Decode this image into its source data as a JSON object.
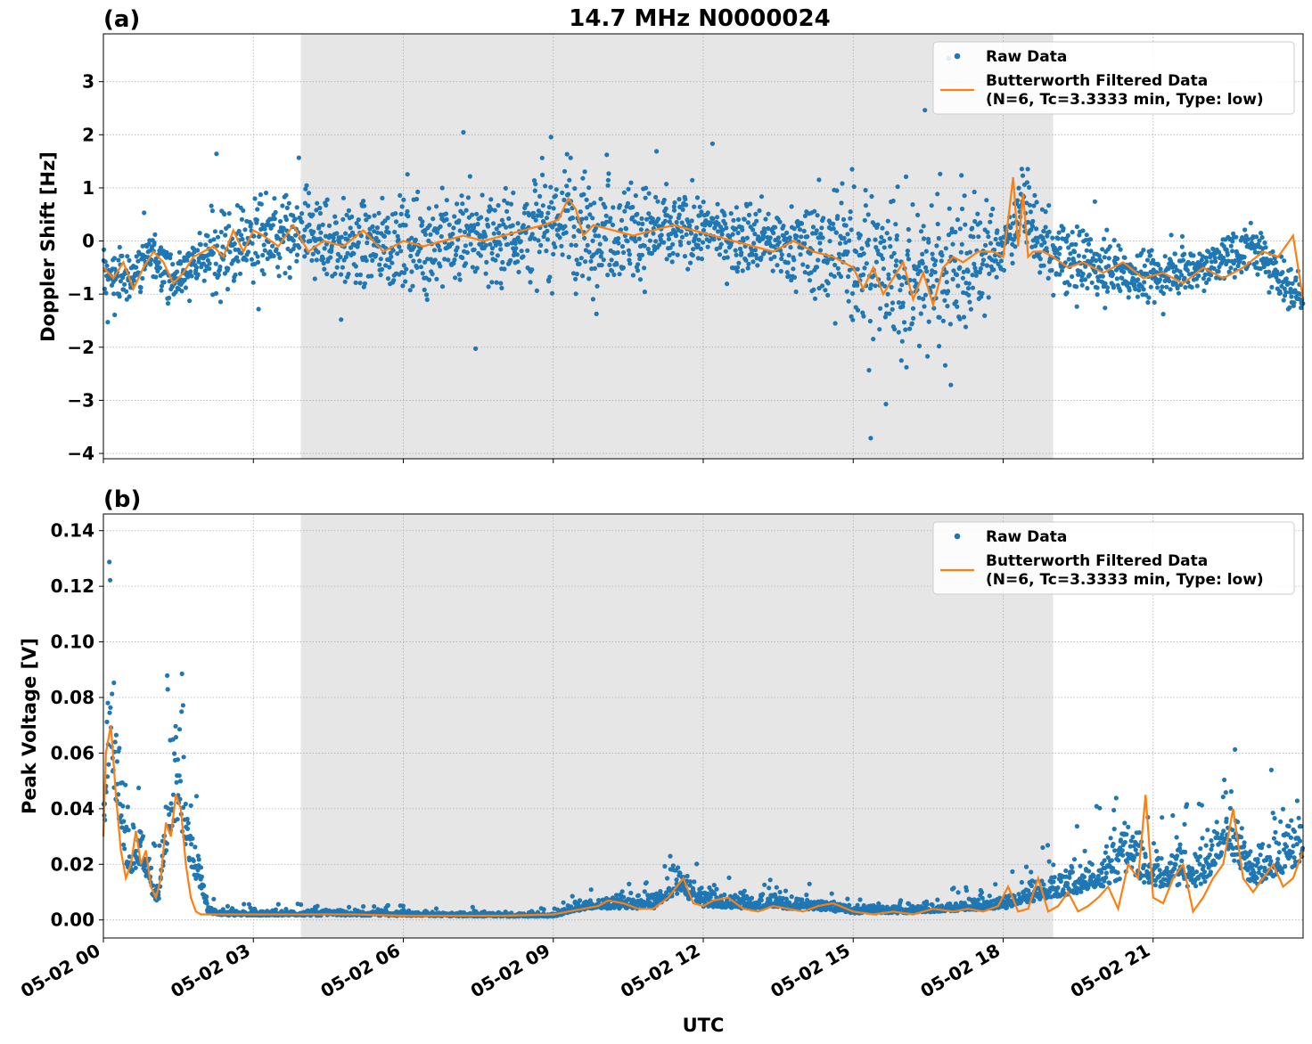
{
  "figure_title": "14.7 MHz N0000024",
  "xlabel": "UTC",
  "colors": {
    "raw": "#1f77b4",
    "filtered": "#ff7f0e",
    "shade": "#e6e6e6",
    "grid": "#b0b0b0"
  },
  "legend": {
    "raw_label": "Raw Data",
    "filt_label_1": "Butterworth Filtered Data",
    "filt_label_2": "(N=6, Tc=3.3333 min, Type: low)"
  },
  "chart_data": [
    {
      "panel": "(a)",
      "type": "scatter",
      "ylabel": "Doppler Shift [Hz]",
      "xlim_hours": [
        0,
        24
      ],
      "ylim": [
        -4.1,
        3.9
      ],
      "yticks": [
        3,
        2,
        1,
        0,
        -1,
        -2,
        -3,
        -4
      ],
      "ytick_labels": [
        "3",
        "2",
        "1",
        "0",
        "−1",
        "−2",
        "−3",
        "−4"
      ],
      "xtick_labels": [
        "05-02 00",
        "05-02 03",
        "05-02 06",
        "05-02 09",
        "05-02 12",
        "05-02 15",
        "05-02 18",
        "05-02 21"
      ],
      "grid": true,
      "legend_position": "top-right",
      "shaded_region_hours": [
        3.95,
        19.0
      ],
      "series": [
        {
          "name": "Raw Data",
          "kind": "scatter",
          "center_hours": [
            0,
            0.5,
            1,
            1.4,
            1.8,
            2.2,
            2.6,
            3,
            3.5,
            4,
            4.5,
            5,
            5.5,
            6,
            6.5,
            7,
            7.5,
            8,
            8.5,
            9,
            9.3,
            9.5,
            10,
            11,
            12,
            13,
            14,
            15,
            15.5,
            16,
            16.5,
            17,
            17.5,
            18,
            18.2,
            18.4,
            18.6,
            19,
            19.5,
            20,
            20.5,
            21,
            21.5,
            22,
            22.5,
            23,
            23.5,
            24
          ],
          "center": [
            -0.6,
            -0.7,
            -0.2,
            -0.8,
            -0.4,
            -0.2,
            -0.1,
            0.1,
            0,
            0.1,
            0,
            -0.1,
            0,
            -0.1,
            0,
            0,
            0.1,
            0.1,
            0.2,
            0.3,
            0.6,
            0.1,
            0.2,
            0.2,
            0.2,
            0,
            -0.1,
            -0.2,
            -0.5,
            -0.7,
            -0.6,
            -0.4,
            -0.3,
            -0.2,
            0.3,
            0.8,
            0.2,
            -0.3,
            -0.4,
            -0.5,
            -0.6,
            -0.7,
            -0.5,
            -0.5,
            -0.3,
            -0.1,
            -0.6,
            -1.1
          ],
          "spread_hours": [
            0,
            1.9,
            2.2,
            4,
            7,
            9,
            9.5,
            12,
            14,
            15,
            17,
            18,
            19,
            21,
            24
          ],
          "spread": [
            0.4,
            0.4,
            0.7,
            0.7,
            0.8,
            0.9,
            1.0,
            0.5,
            0.6,
            1.4,
            1.5,
            0.5,
            0.6,
            0.4,
            0.4
          ]
        }
      ],
      "filtered_line": {
        "name": "Butterworth Filtered Data (N=6, Tc=3.3333 min, Type: low)",
        "x_hours": [
          0,
          0.2,
          0.4,
          0.6,
          0.8,
          1,
          1.2,
          1.4,
          1.6,
          1.8,
          2,
          2.2,
          2.4,
          2.6,
          2.8,
          3,
          3.2,
          3.5,
          3.8,
          4.1,
          4.4,
          4.8,
          5.2,
          5.6,
          6,
          6.4,
          6.8,
          7.2,
          7.6,
          8,
          8.4,
          8.8,
          9.1,
          9.3,
          9.45,
          9.6,
          9.8,
          10.2,
          10.6,
          11,
          11.4,
          11.8,
          12.2,
          12.6,
          13,
          13.4,
          13.8,
          14.2,
          14.6,
          15,
          15.2,
          15.4,
          15.6,
          15.8,
          16,
          16.2,
          16.4,
          16.6,
          16.8,
          17.0,
          17.2,
          17.5,
          17.8,
          18.0,
          18.1,
          18.2,
          18.3,
          18.4,
          18.5,
          18.6,
          18.8,
          19.0,
          19.3,
          19.6,
          20,
          20.4,
          20.8,
          21.2,
          21.6,
          22,
          22.4,
          22.8,
          23.2,
          23.5,
          23.8,
          24
        ],
        "y": [
          -0.5,
          -0.7,
          -0.4,
          -0.9,
          -0.5,
          -0.2,
          -0.4,
          -0.8,
          -0.6,
          -0.3,
          -0.2,
          -0.1,
          -0.3,
          0.2,
          -0.2,
          0.2,
          0.1,
          -0.1,
          0.3,
          -0.2,
          0,
          -0.1,
          0.2,
          -0.2,
          0,
          -0.1,
          0,
          0.1,
          0,
          0.1,
          0.2,
          0.3,
          0.4,
          0.8,
          0.6,
          0.1,
          0.3,
          0.2,
          0.1,
          0.2,
          0.3,
          0.2,
          0.1,
          0,
          -0.1,
          -0.2,
          0,
          -0.2,
          -0.3,
          -0.5,
          -0.9,
          -0.5,
          -1.0,
          -0.7,
          -0.4,
          -1.1,
          -0.6,
          -1.2,
          -0.5,
          -0.3,
          -0.4,
          -0.2,
          -0.2,
          -0.3,
          0.4,
          1.2,
          -0.1,
          0.9,
          -0.3,
          -0.2,
          -0.2,
          -0.3,
          -0.5,
          -0.4,
          -0.6,
          -0.4,
          -0.7,
          -0.6,
          -0.8,
          -0.5,
          -0.7,
          -0.5,
          -0.2,
          -0.3,
          0.1,
          -1.1
        ]
      }
    },
    {
      "panel": "(b)",
      "type": "scatter",
      "ylabel": "Peak Voltage [V]",
      "xlim_hours": [
        0,
        24
      ],
      "ylim": [
        -0.0065,
        0.146
      ],
      "yticks": [
        0.14,
        0.12,
        0.1,
        0.08,
        0.06,
        0.04,
        0.02,
        0.0
      ],
      "ytick_labels": [
        "0.14",
        "0.12",
        "0.10",
        "0.08",
        "0.06",
        "0.04",
        "0.02",
        "0.00"
      ],
      "xtick_labels": [
        "05-02 00",
        "05-02 03",
        "05-02 06",
        "05-02 09",
        "05-02 12",
        "05-02 15",
        "05-02 18",
        "05-02 21"
      ],
      "grid": true,
      "legend_position": "top-right",
      "shaded_region_hours": [
        3.95,
        19.0
      ],
      "series": [
        {
          "name": "Raw Data",
          "kind": "scatter",
          "base_hours": [
            0,
            0.1,
            0.25,
            0.5,
            0.75,
            1,
            1.1,
            1.3,
            1.5,
            1.7,
            1.9,
            2.1,
            2.4,
            3,
            5,
            8,
            9,
            9.5,
            10,
            11,
            11.5,
            12,
            13,
            14,
            15,
            16,
            17,
            18,
            18.5,
            19,
            19.5,
            20,
            20.5,
            21,
            21.5,
            22,
            22.5,
            23,
            23.5,
            24
          ],
          "base": [
            0.03,
            0.07,
            0.05,
            0.02,
            0.025,
            0.01,
            0.008,
            0.035,
            0.045,
            0.025,
            0.015,
            0.003,
            0.002,
            0.002,
            0.002,
            0.0015,
            0.0015,
            0.004,
            0.005,
            0.005,
            0.012,
            0.006,
            0.005,
            0.005,
            0.003,
            0.003,
            0.004,
            0.005,
            0.008,
            0.01,
            0.012,
            0.015,
            0.02,
            0.015,
            0.015,
            0.015,
            0.03,
            0.015,
            0.02,
            0.025
          ]
        }
      ],
      "filtered_line": {
        "name": "Butterworth Filtered Data (N=6, Tc=3.3333 min, Type: low)",
        "x_hours": [
          0,
          0.05,
          0.15,
          0.25,
          0.35,
          0.45,
          0.55,
          0.65,
          0.75,
          0.85,
          0.95,
          1.05,
          1.15,
          1.25,
          1.35,
          1.45,
          1.55,
          1.65,
          1.75,
          1.85,
          1.95,
          2.05,
          2.2,
          2.4,
          3,
          4,
          5,
          6,
          7,
          8,
          9,
          9.3,
          9.6,
          9.9,
          10.1,
          10.4,
          10.7,
          11,
          11.3,
          11.6,
          11.8,
          12.0,
          12.2,
          12.5,
          12.8,
          13.1,
          13.4,
          13.7,
          14,
          14.3,
          14.6,
          15,
          15.4,
          15.8,
          16.2,
          16.6,
          17,
          17.3,
          17.6,
          17.9,
          18.1,
          18.3,
          18.5,
          18.7,
          18.9,
          19.1,
          19.3,
          19.5,
          19.7,
          19.9,
          20.1,
          20.3,
          20.5,
          20.7,
          20.85,
          21.0,
          21.2,
          21.4,
          21.6,
          21.8,
          22.0,
          22.2,
          22.4,
          22.6,
          22.8,
          23.0,
          23.2,
          23.4,
          23.6,
          23.8,
          24
        ],
        "y": [
          0.03,
          0.06,
          0.07,
          0.045,
          0.025,
          0.015,
          0.02,
          0.032,
          0.02,
          0.025,
          0.012,
          0.008,
          0.015,
          0.035,
          0.03,
          0.045,
          0.04,
          0.02,
          0.008,
          0.003,
          0.002,
          0.002,
          0.002,
          0.002,
          0.002,
          0.002,
          0.002,
          0.0015,
          0.0015,
          0.0015,
          0.002,
          0.003,
          0.004,
          0.005,
          0.007,
          0.006,
          0.004,
          0.004,
          0.008,
          0.015,
          0.006,
          0.005,
          0.007,
          0.008,
          0.004,
          0.003,
          0.005,
          0.004,
          0.003,
          0.005,
          0.006,
          0.003,
          0.002,
          0.003,
          0.002,
          0.004,
          0.003,
          0.004,
          0.003,
          0.005,
          0.012,
          0.003,
          0.004,
          0.015,
          0.003,
          0.005,
          0.01,
          0.003,
          0.005,
          0.008,
          0.012,
          0.004,
          0.02,
          0.015,
          0.045,
          0.008,
          0.006,
          0.015,
          0.02,
          0.003,
          0.008,
          0.015,
          0.02,
          0.04,
          0.015,
          0.01,
          0.015,
          0.02,
          0.012,
          0.015,
          0.025
        ]
      }
    }
  ]
}
